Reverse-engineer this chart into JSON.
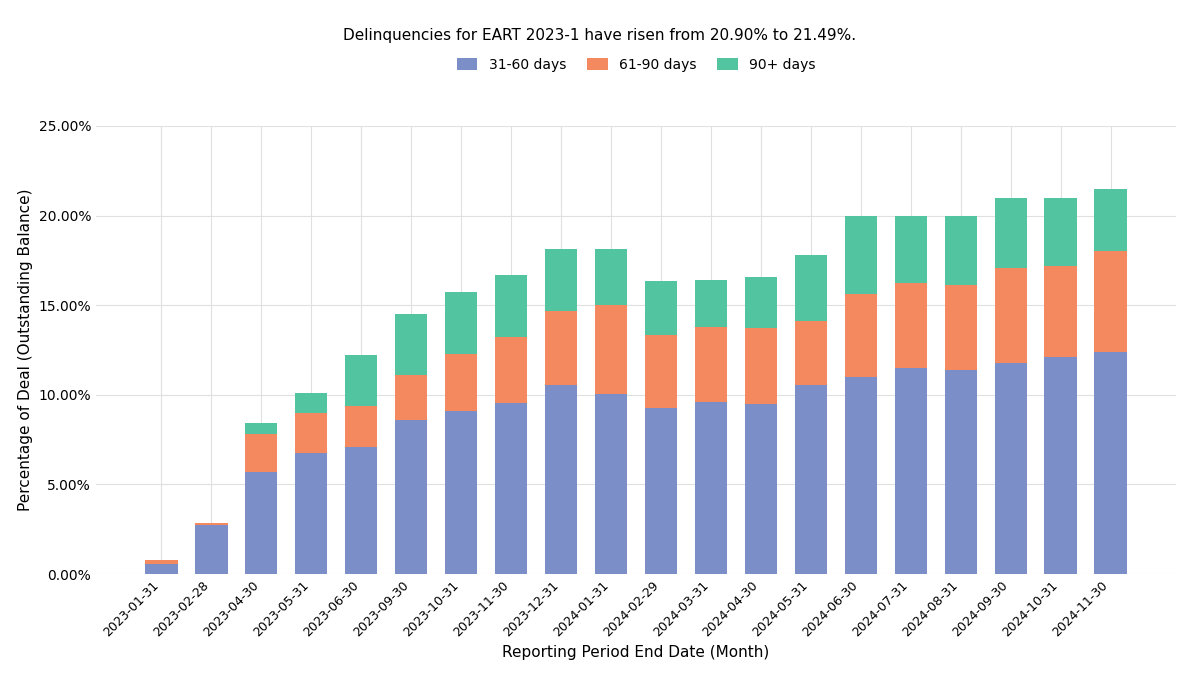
{
  "title": "Delinquencies for EART 2023-1 have risen from 20.90% to 21.49%.",
  "xlabel": "Reporting Period End Date (Month)",
  "ylabel": "Percentage of Deal (Outstanding Balance)",
  "legend_labels": [
    "31-60 days",
    "61-90 days",
    "90+ days"
  ],
  "colors": [
    "#7b8ec8",
    "#f4895f",
    "#52c4a0"
  ],
  "categories": [
    "2023-01-31",
    "2023-02-28",
    "2023-04-30",
    "2023-05-31",
    "2023-06-30",
    "2023-09-30",
    "2023-10-31",
    "2023-11-30",
    "2023-12-31",
    "2024-01-31",
    "2024-02-29",
    "2024-03-31",
    "2024-04-30",
    "2024-05-31",
    "2024-06-30",
    "2024-07-31",
    "2024-08-31",
    "2024-09-30",
    "2024-10-31",
    "2024-11-30"
  ],
  "data_31_60": [
    0.55,
    2.75,
    5.7,
    6.75,
    7.1,
    8.6,
    9.1,
    9.55,
    10.55,
    10.05,
    9.25,
    9.6,
    9.5,
    10.55,
    11.0,
    11.5,
    11.4,
    11.75,
    12.1,
    12.4
  ],
  "data_61_90": [
    0.25,
    0.1,
    2.1,
    2.25,
    2.25,
    2.5,
    3.2,
    3.65,
    4.1,
    4.95,
    4.1,
    4.2,
    4.2,
    3.55,
    4.65,
    4.75,
    4.75,
    5.3,
    5.1,
    5.6
  ],
  "data_90plus": [
    0.0,
    0.0,
    0.65,
    1.1,
    2.85,
    3.4,
    3.45,
    3.5,
    3.5,
    3.15,
    3.0,
    2.6,
    2.9,
    3.7,
    4.3,
    3.7,
    3.85,
    3.95,
    3.8,
    3.5
  ],
  "ylim": [
    0,
    25.0
  ],
  "yticks": [
    0,
    5,
    10,
    15,
    20,
    25
  ],
  "background_color": "#ffffff",
  "grid_color": "#e0e0e0"
}
